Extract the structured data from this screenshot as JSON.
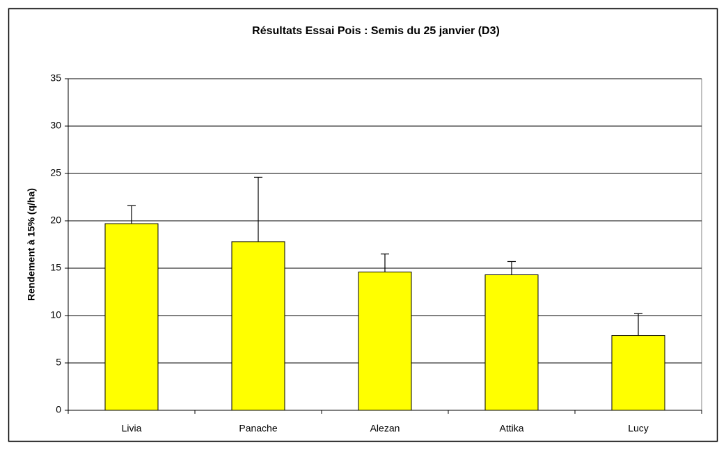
{
  "chart_data": {
    "type": "bar",
    "title": "Résultats Essai Pois : Semis du 25 janvier (D3)",
    "y_label": "Rendement à 15% (q/ha)",
    "categories": [
      "Livia",
      "Panache",
      "Alezan",
      "Attika",
      "Lucy"
    ],
    "values": [
      19.7,
      17.8,
      14.6,
      14.3,
      7.9
    ],
    "errors": [
      1.9,
      6.8,
      1.9,
      1.4,
      2.3
    ],
    "color": "#ffff00",
    "ylim": [
      0,
      35
    ],
    "yticks": [
      0,
      5,
      10,
      15,
      20,
      25,
      30,
      35
    ],
    "grid": true
  }
}
